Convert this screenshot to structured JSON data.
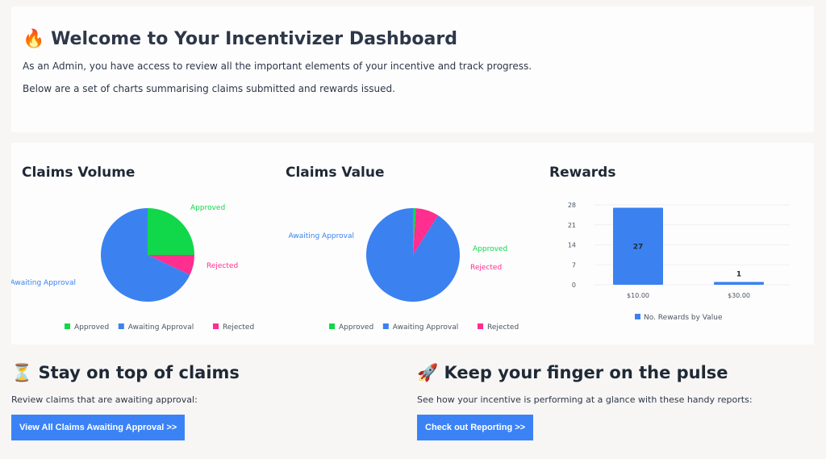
{
  "welcome": {
    "title": "Welcome to Your Incentivizer Dashboard",
    "icon": "fire-icon",
    "line1": "As an Admin, you have access to review all the important elements of your incentive and track progress.",
    "line2": "Below are a set of charts summarising claims submitted and rewards issued."
  },
  "chart_data": [
    {
      "type": "pie",
      "title": "Claims Volume",
      "labels": [
        "Approved",
        "Awaiting Approval",
        "Rejected"
      ],
      "values": [
        25,
        68,
        7
      ],
      "colors": [
        "#10d84a",
        "#3b82f0",
        "#ff2e8f"
      ],
      "legend": "bottom"
    },
    {
      "type": "pie",
      "title": "Claims Value",
      "labels": [
        "Approved",
        "Awaiting Approval",
        "Rejected"
      ],
      "values": [
        1,
        91,
        8
      ],
      "colors": [
        "#10d84a",
        "#3b82f0",
        "#ff2e8f"
      ],
      "legend": "bottom"
    },
    {
      "type": "bar",
      "title": "Rewards",
      "categories": [
        "$10.00",
        "$30.00"
      ],
      "series": [
        {
          "name": "No. Rewards by Value",
          "values": [
            27,
            1
          ]
        }
      ],
      "ylim": [
        0,
        28
      ],
      "yticks": [
        "0",
        "7",
        "14",
        "21",
        "28"
      ],
      "grid": true,
      "legend": "bottom",
      "color": "#3b82f0"
    }
  ],
  "claims": {
    "icon": "hourglass-icon",
    "title": "Stay on top of claims",
    "text": "Review claims that are awaiting approval:",
    "button": "View All Claims Awaiting Approval >>"
  },
  "pulse": {
    "icon": "rocket-icon",
    "title": "Keep your finger on the pulse",
    "text": "See how your incentive is performing at a glance with these handy reports:",
    "button": "Check out Reporting >>"
  }
}
